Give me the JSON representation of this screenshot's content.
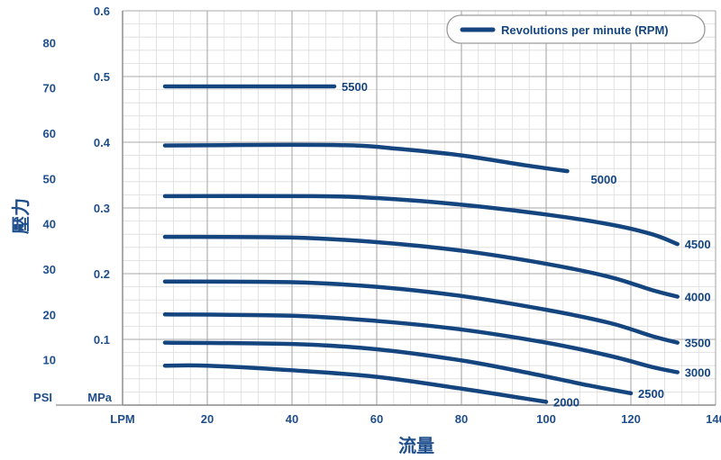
{
  "chart_data": {
    "type": "line",
    "x_unit_label": "LPM",
    "y_unit_label_mpa": "MPa",
    "y_unit_label_psi": "PSI",
    "xlabel": "流量",
    "ylabel": "壓力",
    "xlim": [
      0,
      140
    ],
    "ylim": [
      0,
      0.6
    ],
    "x_ticks": [
      20,
      40,
      60,
      80,
      100,
      120,
      140
    ],
    "mpa_ticks": [
      0.1,
      0.2,
      0.3,
      0.4,
      0.5,
      0.6
    ],
    "psi_ticks": [
      10,
      20,
      30,
      40,
      50,
      60,
      70,
      80
    ],
    "grid": true,
    "legend": {
      "title": "Revolutions per minute (RPM)",
      "position": "top-right"
    },
    "colors": {
      "line": "#14457f",
      "text": "#1f4e8c",
      "grid_major": "#a8a8a8",
      "grid_minor": "#dcdcdc"
    },
    "series": [
      {
        "name": "5500",
        "x": [
          10,
          30,
          50
        ],
        "y": [
          0.485,
          0.485,
          0.485
        ]
      },
      {
        "name": "5000",
        "x": [
          10,
          40,
          55,
          65,
          80,
          95,
          105
        ],
        "y": [
          0.395,
          0.396,
          0.395,
          0.39,
          0.38,
          0.365,
          0.356
        ]
      },
      {
        "name": "4500",
        "x": [
          10,
          45,
          60,
          80,
          100,
          115,
          125,
          131
        ],
        "y": [
          0.318,
          0.318,
          0.315,
          0.305,
          0.29,
          0.275,
          0.26,
          0.245
        ]
      },
      {
        "name": "4000",
        "x": [
          10,
          40,
          60,
          80,
          100,
          115,
          125,
          131
        ],
        "y": [
          0.256,
          0.255,
          0.248,
          0.235,
          0.215,
          0.195,
          0.175,
          0.165
        ]
      },
      {
        "name": "3500",
        "x": [
          10,
          40,
          60,
          80,
          100,
          115,
          125,
          131
        ],
        "y": [
          0.188,
          0.187,
          0.18,
          0.166,
          0.145,
          0.125,
          0.105,
          0.095
        ]
      },
      {
        "name": "3000",
        "x": [
          10,
          40,
          60,
          80,
          100,
          115,
          125,
          131
        ],
        "y": [
          0.138,
          0.136,
          0.128,
          0.115,
          0.095,
          0.075,
          0.058,
          0.05
        ]
      },
      {
        "name": "2500",
        "x": [
          10,
          40,
          60,
          80,
          95,
          110,
          120
        ],
        "y": [
          0.095,
          0.093,
          0.085,
          0.068,
          0.05,
          0.03,
          0.018
        ]
      },
      {
        "name": "2000",
        "x": [
          10,
          20,
          40,
          60,
          80,
          95,
          100
        ],
        "y": [
          0.06,
          0.06,
          0.053,
          0.043,
          0.025,
          0.01,
          0.005
        ]
      }
    ]
  }
}
